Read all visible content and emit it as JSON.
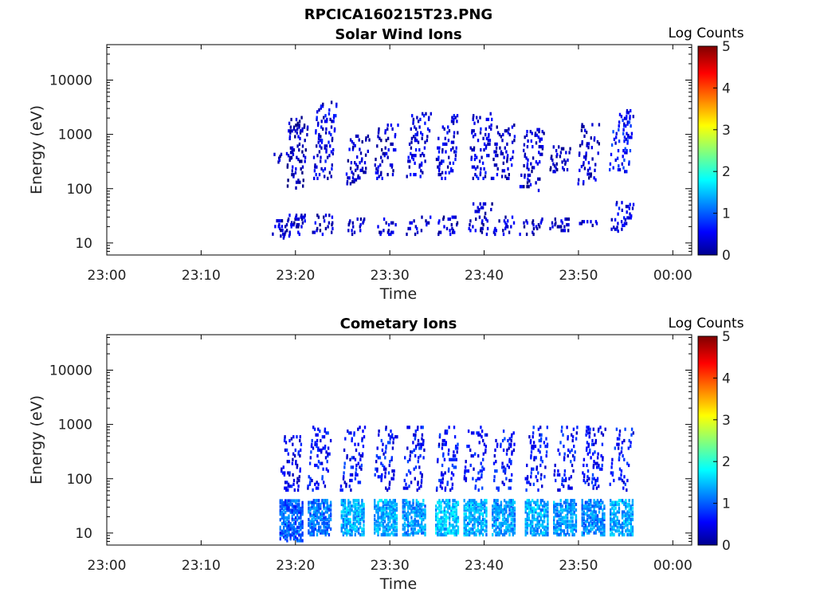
{
  "figure_title": "RPCICA160215T23.PNG",
  "chart_data": [
    {
      "type": "heatmap",
      "title": "Solar Wind Ions",
      "xlabel": "Time",
      "ylabel": "Energy (eV)",
      "x_scale": "time",
      "y_scale": "log",
      "xlim": [
        "23:00",
        "00:02"
      ],
      "ylim": [
        6,
        45000
      ],
      "x_ticks": [
        "23:00",
        "23:10",
        "23:20",
        "23:30",
        "23:40",
        "23:50",
        "00:00"
      ],
      "y_ticks": [
        "10",
        "100",
        "1000",
        "10000"
      ],
      "colorbar": {
        "label": "Log Counts",
        "range": [
          0,
          5
        ],
        "ticks": [
          "0",
          "1",
          "2",
          "3",
          "4",
          "5"
        ],
        "colormap": "jet"
      },
      "grid": false,
      "scans": [
        {
          "t": "23:18:30",
          "bands": [
            [
              12,
              26,
              0.3
            ],
            [
              300,
              450,
              0.2
            ]
          ]
        },
        {
          "t": "23:20:00",
          "bands": [
            [
              14,
              32,
              0.3
            ],
            [
              100,
              2000,
              0.2
            ]
          ]
        },
        {
          "t": "23:23:00",
          "bands": [
            [
              14,
              35,
              0.3
            ],
            [
              150,
              4000,
              0.4
            ]
          ]
        },
        {
          "t": "23:26:30",
          "bands": [
            [
              14,
              28,
              0.3
            ],
            [
              120,
              900,
              0.3
            ]
          ]
        },
        {
          "t": "23:29:30",
          "bands": [
            [
              14,
              28,
              0.3
            ],
            [
              150,
              1500,
              0.3
            ]
          ]
        },
        {
          "t": "23:33:00",
          "bands": [
            [
              14,
              32,
              0.3
            ],
            [
              150,
              2500,
              0.4
            ]
          ]
        },
        {
          "t": "23:36:00",
          "bands": [
            [
              14,
              30,
              0.3
            ],
            [
              150,
              2500,
              0.4
            ]
          ]
        },
        {
          "t": "23:39:30",
          "bands": [
            [
              14,
              55,
              0.3
            ],
            [
              150,
              2500,
              0.4
            ]
          ]
        },
        {
          "t": "23:42:00",
          "bands": [
            [
              14,
              30,
              0.3
            ],
            [
              150,
              1500,
              0.3
            ]
          ]
        },
        {
          "t": "23:45:00",
          "bands": [
            [
              14,
              28,
              0.3
            ],
            [
              90,
              1200,
              0.3
            ]
          ]
        },
        {
          "t": "23:48:00",
          "bands": [
            [
              14,
              28,
              0.3
            ],
            [
              200,
              600,
              0.2
            ]
          ]
        },
        {
          "t": "23:51:00",
          "bands": [
            [
              16,
              28,
              0.3
            ],
            [
              120,
              1500,
              0.3
            ]
          ]
        },
        {
          "t": "23:54:30",
          "bands": [
            [
              16,
              55,
              0.5
            ],
            [
              200,
              2700,
              0.6
            ]
          ]
        }
      ]
    },
    {
      "type": "heatmap",
      "title": "Cometary Ions",
      "xlabel": "Time",
      "ylabel": "Energy (eV)",
      "x_scale": "time",
      "y_scale": "log",
      "xlim": [
        "23:00",
        "00:02"
      ],
      "ylim": [
        6,
        45000
      ],
      "x_ticks": [
        "23:00",
        "23:10",
        "23:20",
        "23:30",
        "23:40",
        "23:50",
        "00:00"
      ],
      "y_ticks": [
        "10",
        "100",
        "1000",
        "10000"
      ],
      "colorbar": {
        "label": "Log Counts",
        "range": [
          0,
          5
        ],
        "ticks": [
          "0",
          "1",
          "2",
          "3",
          "4",
          "5"
        ],
        "colormap": "jet"
      },
      "grid": false,
      "scans": [
        {
          "t": "23:19:30",
          "bands": [
            [
              7,
              40,
              1.0
            ],
            [
              60,
              600,
              0.5
            ]
          ]
        },
        {
          "t": "23:22:30",
          "bands": [
            [
              9,
              40,
              1.1
            ],
            [
              60,
              900,
              0.6
            ]
          ]
        },
        {
          "t": "23:26:00",
          "bands": [
            [
              9,
              40,
              1.4
            ],
            [
              60,
              900,
              0.6
            ]
          ]
        },
        {
          "t": "23:29:30",
          "bands": [
            [
              9,
              40,
              1.4
            ],
            [
              60,
              900,
              0.6
            ]
          ]
        },
        {
          "t": "23:32:30",
          "bands": [
            [
              9,
              40,
              1.3
            ],
            [
              60,
              900,
              0.6
            ]
          ]
        },
        {
          "t": "23:36:00",
          "bands": [
            [
              9,
              40,
              1.5
            ],
            [
              60,
              900,
              0.6
            ]
          ]
        },
        {
          "t": "23:39:00",
          "bands": [
            [
              9,
              40,
              1.4
            ],
            [
              60,
              900,
              0.6
            ]
          ]
        },
        {
          "t": "23:42:00",
          "bands": [
            [
              9,
              40,
              1.3
            ],
            [
              60,
              900,
              0.6
            ]
          ]
        },
        {
          "t": "23:45:30",
          "bands": [
            [
              9,
              40,
              1.4
            ],
            [
              60,
              900,
              0.6
            ]
          ]
        },
        {
          "t": "23:48:30",
          "bands": [
            [
              9,
              40,
              1.3
            ],
            [
              60,
              900,
              0.6
            ]
          ]
        },
        {
          "t": "23:51:30",
          "bands": [
            [
              9,
              40,
              1.2
            ],
            [
              60,
              900,
              0.6
            ]
          ]
        },
        {
          "t": "23:54:30",
          "bands": [
            [
              9,
              40,
              1.4
            ],
            [
              60,
              900,
              0.6
            ]
          ]
        }
      ]
    }
  ]
}
